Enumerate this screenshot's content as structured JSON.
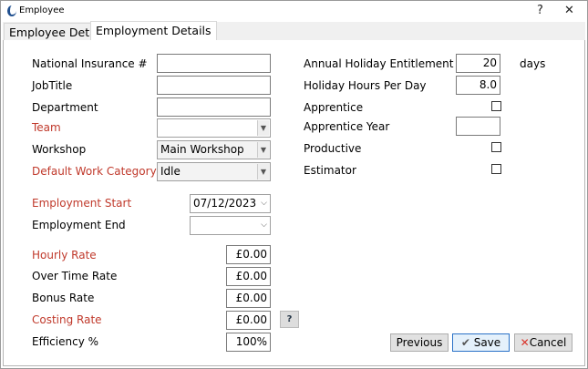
{
  "window": {
    "title": "Employee",
    "help": "?",
    "close": "✕"
  },
  "tabs": [
    {
      "label": "Employee Details",
      "active": false
    },
    {
      "label": "Employment Details",
      "active": true
    }
  ],
  "left": {
    "ni_label": "National Insurance #",
    "ni_value": "",
    "job_label": "JobTitle",
    "job_value": "",
    "dept_label": "Department",
    "dept_value": "",
    "team_label": "Team",
    "team_value": "",
    "workshop_label": "Workshop",
    "workshop_value": "Main Workshop",
    "work_cat_label": "Default Work Category",
    "work_cat_value": "Idle",
    "start_label": "Employment Start",
    "start_value": "07/12/2023",
    "end_label": "Employment End",
    "end_value": "",
    "hourly_label": "Hourly Rate",
    "hourly_value": "£0.00",
    "overtime_label": "Over Time Rate",
    "overtime_value": "£0.00",
    "bonus_label": "Bonus Rate",
    "bonus_value": "£0.00",
    "costing_label": "Costing Rate",
    "costing_value": "£0.00",
    "costing_help": "?",
    "eff_label": "Efficiency %",
    "eff_value": "100%"
  },
  "right": {
    "annual_label": "Annual Holiday Entitlement",
    "annual_value": "20",
    "annual_unit": "days",
    "hpd_label": "Holiday Hours Per Day",
    "hpd_value": "8.0",
    "apprentice_label": "Apprentice",
    "apprentice_checked": false,
    "app_year_label": "Apprentice Year",
    "app_year_value": "",
    "productive_label": "Productive",
    "productive_checked": false,
    "estimator_label": "Estimator",
    "estimator_checked": false
  },
  "buttons": {
    "previous": "Previous",
    "save": "Save",
    "cancel": "Cancel"
  },
  "colors": {
    "required_label": "#c0392b",
    "default_button_border": "#2a72c8"
  }
}
